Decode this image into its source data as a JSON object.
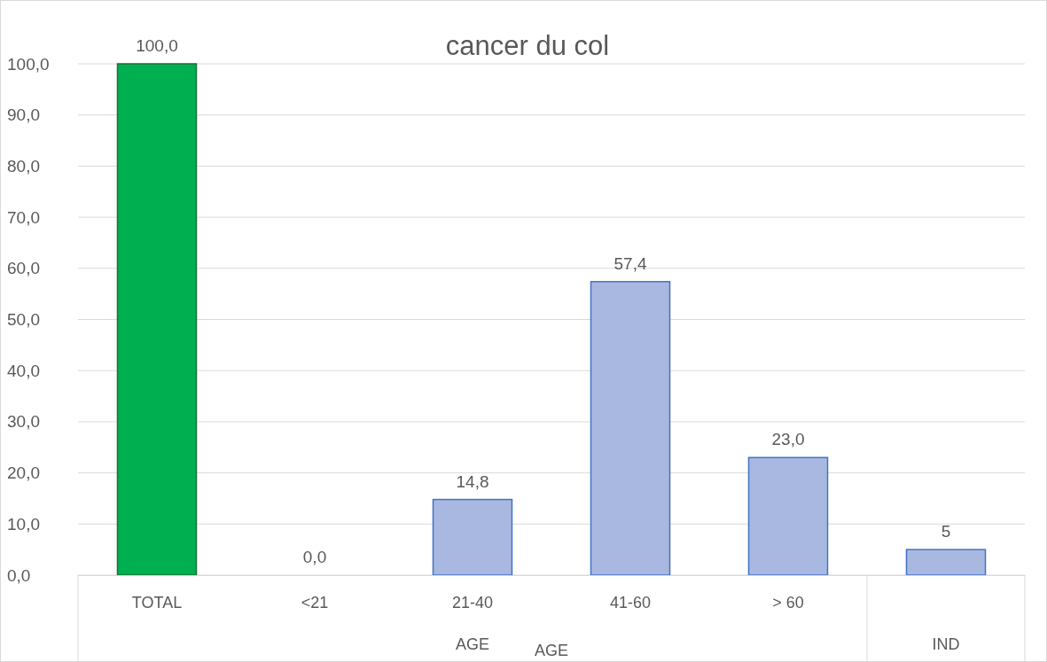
{
  "chart_data": {
    "type": "bar",
    "title": "cancer du col",
    "xlabel": "AGE",
    "categories": [
      "TOTAL",
      "<21",
      "21-40",
      "41-60",
      "> 60",
      null
    ],
    "values": [
      100,
      0,
      14.8,
      57.4,
      23,
      5
    ],
    "colors": [
      "#00b050",
      "#a9b8e0",
      "#a9b8e0",
      "#a9b8e0",
      "#a9b8e0",
      "#a9b8e0"
    ],
    "value_labels": [
      "100,0",
      "0,0",
      "14,8",
      "57,4",
      "23,0",
      "5"
    ],
    "ylim": [
      0,
      100
    ],
    "yticks": [
      {
        "value": 0,
        "label": "0,0"
      },
      {
        "value": 10,
        "label": "10,0"
      },
      {
        "value": 20,
        "label": "20,0"
      },
      {
        "value": 30,
        "label": "30,0"
      },
      {
        "value": 40,
        "label": "40,0"
      },
      {
        "value": 50,
        "label": "50,0"
      },
      {
        "value": 60,
        "label": "60,0"
      },
      {
        "value": 70,
        "label": "70,0"
      },
      {
        "value": 80,
        "label": "80,0"
      },
      {
        "value": 90,
        "label": "90,0"
      },
      {
        "value": 100,
        "label": "100,0"
      }
    ],
    "grid": "y",
    "annotations": [
      "AGE",
      "IND"
    ]
  }
}
